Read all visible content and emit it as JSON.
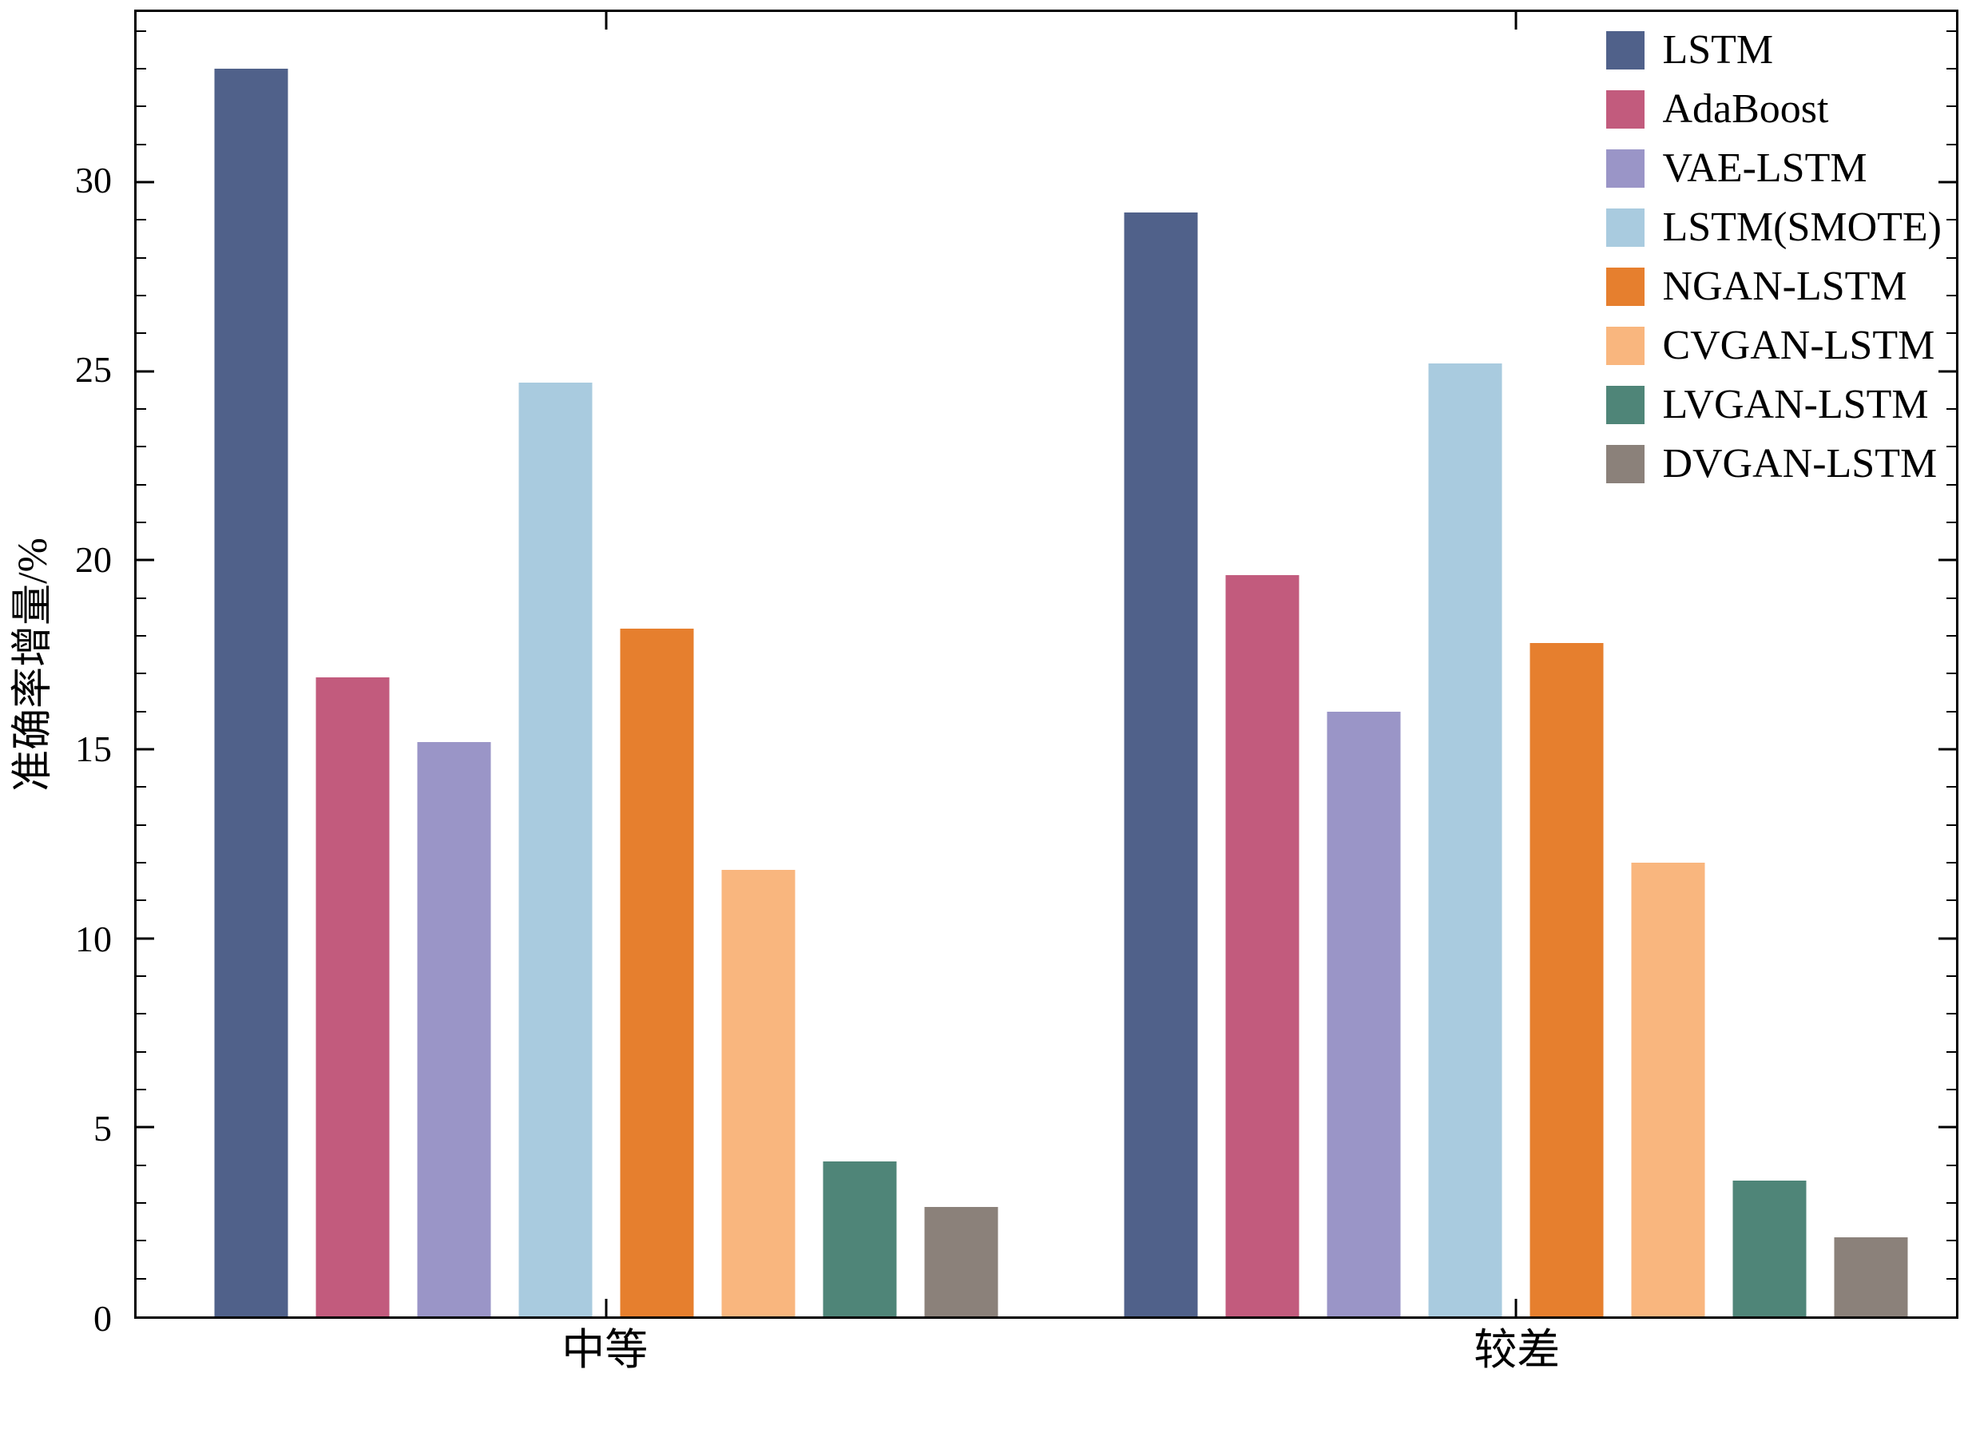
{
  "chart_data": {
    "type": "bar",
    "categories": [
      "中等",
      "较差"
    ],
    "series": [
      {
        "name": "LSTM",
        "color": "#50618a",
        "values": [
          33.0,
          29.2
        ]
      },
      {
        "name": "AdaBoost",
        "color": "#c25b7d",
        "values": [
          16.9,
          19.6
        ]
      },
      {
        "name": "VAE-LSTM",
        "color": "#9a95c7",
        "values": [
          15.2,
          16.0
        ]
      },
      {
        "name": "LSTM(SMOTE)",
        "color": "#a9cbdf",
        "values": [
          24.7,
          25.2
        ]
      },
      {
        "name": "NGAN-LSTM",
        "color": "#e67f2e",
        "values": [
          18.2,
          17.8
        ]
      },
      {
        "name": "CVGAN-LSTM",
        "color": "#f9b67e",
        "values": [
          11.8,
          12.0
        ]
      },
      {
        "name": "LVGAN-LSTM",
        "color": "#4f8578",
        "values": [
          4.1,
          3.6
        ]
      },
      {
        "name": "DVGAN-LSTM",
        "color": "#8b817a",
        "values": [
          2.9,
          2.1
        ]
      }
    ],
    "title": "",
    "xlabel": "",
    "ylabel": "准确率增量/%",
    "ylim": [
      0,
      34.5
    ],
    "yticks": [
      0,
      5,
      10,
      15,
      20,
      25,
      30
    ],
    "grid": false,
    "legend_position": "upper right"
  }
}
